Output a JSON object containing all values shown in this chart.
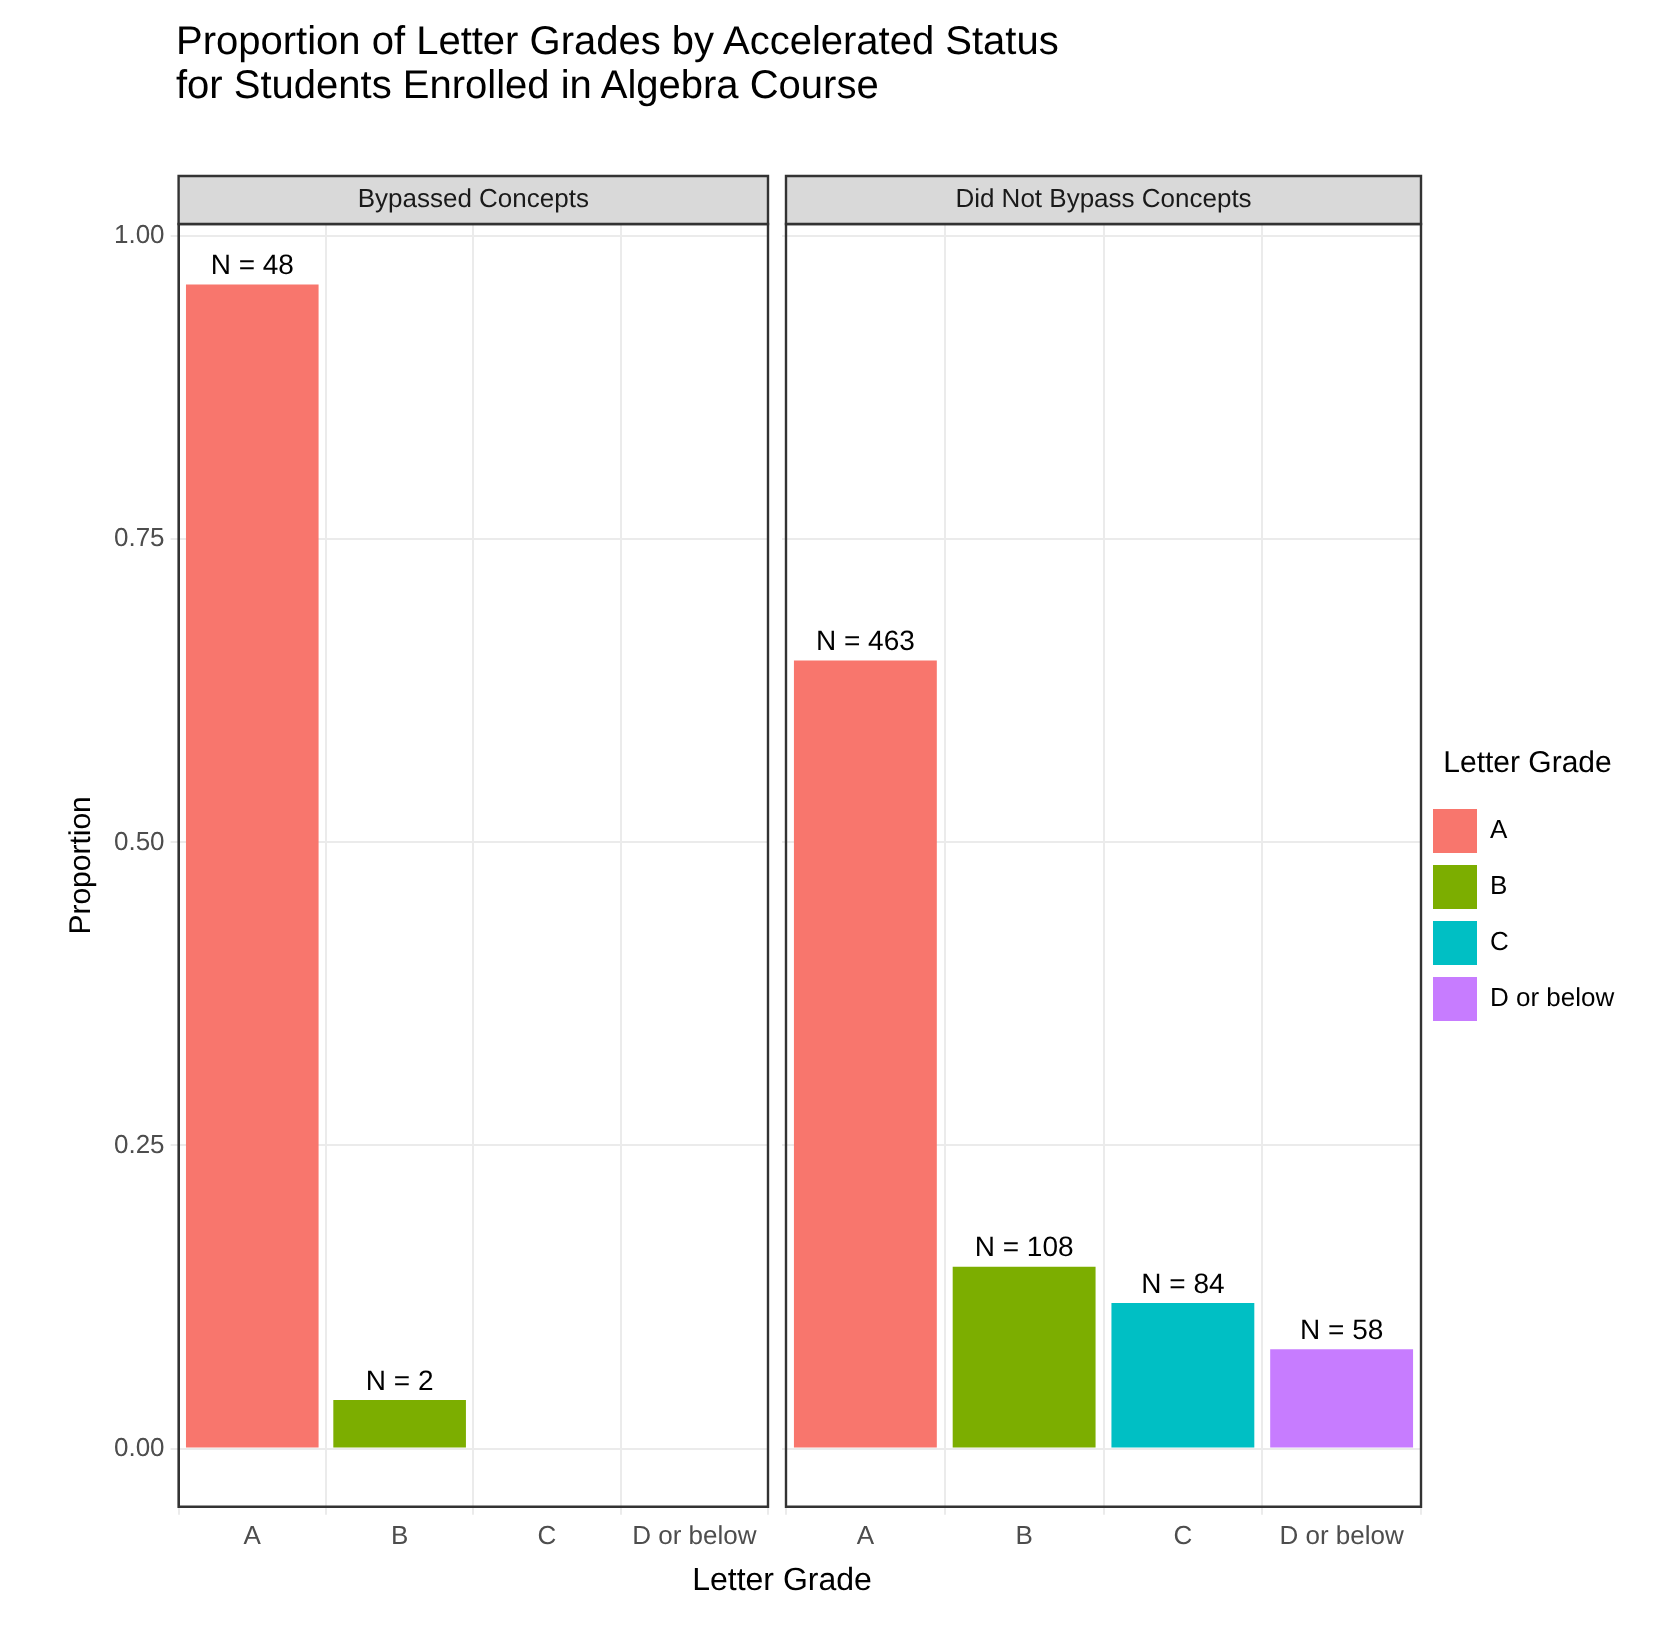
{
  "chart_data": [
    {
      "type": "bar",
      "title": "Proportion of Letter Grades by Accelerated Status\nfor Students Enrolled in Algebra Course",
      "subtitle": "Bypassed Concepts",
      "xlabel": "Letter Grade",
      "ylabel": "Proportion",
      "categories": [
        "A",
        "B",
        "C",
        "D or below"
      ],
      "series": [
        {
          "color": "#f8766d",
          "values": [
            0.96,
            null,
            null,
            null
          ]
        },
        {
          "color": "#7cae00",
          "values": [
            null,
            0.04,
            null,
            null
          ]
        }
      ],
      "annotations": [
        {
          "text": "N = 48",
          "x": "A",
          "y": 0.96
        },
        {
          "text": "N = 2",
          "x": "B",
          "y": 0.04
        }
      ],
      "ylim": [
        -0.048,
        1.01
      ],
      "yticks": [
        {
          "value": 0,
          "label": "0.00"
        },
        {
          "value": 0.25,
          "label": "0.25"
        },
        {
          "value": 0.5,
          "label": "0.50"
        },
        {
          "value": 0.75,
          "label": "0.75"
        },
        {
          "value": 1,
          "label": "1.00"
        }
      ],
      "grid": true,
      "legend": false
    },
    {
      "type": "bar",
      "subtitle": "Did Not Bypass Concepts",
      "legend_title": "Letter Grade",
      "categories": [
        "A",
        "B",
        "C",
        "D or below"
      ],
      "series": [
        {
          "name": "A",
          "color": "#f8766d",
          "values": [
            0.65,
            null,
            null,
            null
          ]
        },
        {
          "name": "B",
          "color": "#7cae00",
          "values": [
            null,
            0.15,
            null,
            null
          ]
        },
        {
          "name": "C",
          "color": "#00bfc4",
          "values": [
            null,
            null,
            0.12,
            null
          ]
        },
        {
          "name": "D or below",
          "color": "#c77cff",
          "values": [
            null,
            null,
            null,
            0.082
          ]
        }
      ],
      "annotations": [
        {
          "text": "N = 463",
          "x": "A",
          "y": 0.65
        },
        {
          "text": "N = 108",
          "x": "B",
          "y": 0.15
        },
        {
          "text": "N = 84",
          "x": "C",
          "y": 0.12
        },
        {
          "text": "N = 58",
          "x": "D or below",
          "y": 0.082
        }
      ],
      "ylim": [
        -0.048,
        1.01
      ],
      "yticks": [
        0,
        0.25,
        0.5,
        0.75,
        1
      ],
      "grid": true,
      "legend": "right",
      "tick_labels": "x"
    }
  ]
}
